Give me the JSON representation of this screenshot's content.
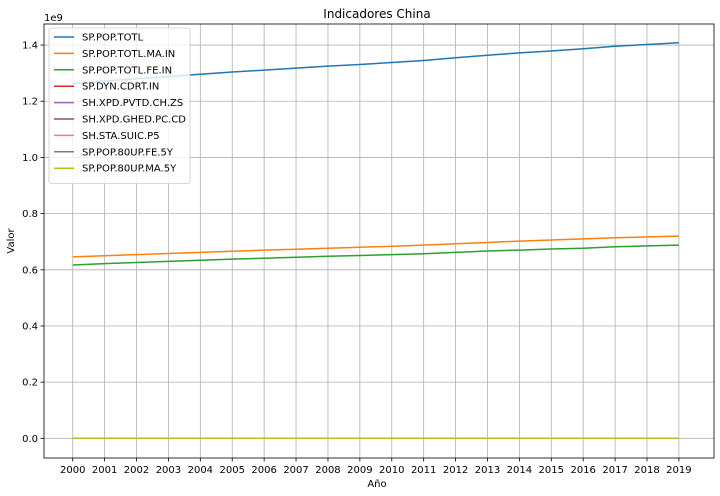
{
  "chart_data": {
    "type": "line",
    "title": "Indicadores China",
    "xlabel": "Año",
    "ylabel": "Valor",
    "y_offset_label": "1e9",
    "x": [
      2000,
      2001,
      2002,
      2003,
      2004,
      2005,
      2006,
      2007,
      2008,
      2009,
      2010,
      2011,
      2012,
      2013,
      2014,
      2015,
      2016,
      2017,
      2018,
      2019
    ],
    "xlim": [
      1999.1,
      2020.1
    ],
    "ylim": [
      -0.07,
      1.475
    ],
    "y_ticks": [
      0.0,
      0.2,
      0.4,
      0.6,
      0.8,
      1.0,
      1.2,
      1.4
    ],
    "y_tick_labels": [
      "0.0",
      "0.2",
      "0.4",
      "0.6",
      "0.8",
      "1.0",
      "1.2",
      "1.4"
    ],
    "grid": true,
    "legend_position": "top-left",
    "series": [
      {
        "name": "SP.POP.TOTL",
        "color": "#1f77b4",
        "values": [
          1.263,
          1.272,
          1.28,
          1.288,
          1.296,
          1.304,
          1.311,
          1.318,
          1.325,
          1.331,
          1.338,
          1.345,
          1.355,
          1.364,
          1.372,
          1.379,
          1.387,
          1.396,
          1.402,
          1.408
        ]
      },
      {
        "name": "SP.POP.TOTL.MA.IN",
        "color": "#ff7f0e",
        "values": [
          0.646,
          0.65,
          0.654,
          0.658,
          0.662,
          0.666,
          0.67,
          0.673,
          0.677,
          0.68,
          0.684,
          0.688,
          0.693,
          0.697,
          0.702,
          0.706,
          0.71,
          0.714,
          0.717,
          0.72
        ]
      },
      {
        "name": "SP.POP.TOTL.FE.IN",
        "color": "#2ca02c",
        "values": [
          0.617,
          0.622,
          0.626,
          0.63,
          0.634,
          0.638,
          0.641,
          0.645,
          0.648,
          0.651,
          0.654,
          0.657,
          0.662,
          0.667,
          0.67,
          0.674,
          0.677,
          0.682,
          0.685,
          0.688
        ]
      },
      {
        "name": "SP.DYN.CDRT.IN",
        "color": "#d62728",
        "values": [
          0,
          0,
          0,
          0,
          0,
          0,
          0,
          0,
          0,
          0,
          0,
          0,
          0,
          0,
          0,
          0,
          0,
          0,
          0,
          0
        ]
      },
      {
        "name": "SH.XPD.PVTD.CH.ZS",
        "color": "#9467bd",
        "values": [
          0,
          0,
          0,
          0,
          0,
          0,
          0,
          0,
          0,
          0,
          0,
          0,
          0,
          0,
          0,
          0,
          0,
          0,
          0,
          0
        ]
      },
      {
        "name": "SH.XPD.GHED.PC.CD",
        "color": "#8c564b",
        "values": [
          0,
          0,
          0,
          0,
          0,
          0,
          0,
          0,
          0,
          0,
          0,
          0,
          0,
          0,
          0,
          0,
          0,
          0,
          0,
          0
        ]
      },
      {
        "name": "SH.STA.SUIC.P5",
        "color": "#e377c2",
        "values": [
          0,
          0,
          0,
          0,
          0,
          0,
          0,
          0,
          0,
          0,
          0,
          0,
          0,
          0,
          0,
          0,
          0,
          0,
          0,
          0
        ]
      },
      {
        "name": "SP.POP.80UP.FE.5Y",
        "color": "#7f7f7f",
        "values": [
          0,
          0,
          0,
          0,
          0,
          0,
          0,
          0,
          0,
          0,
          0,
          0,
          0,
          0,
          0,
          0,
          0,
          0,
          0,
          0
        ]
      },
      {
        "name": "SP.POP.80UP.MA.5Y",
        "color": "#bcbd22",
        "values": [
          0,
          0,
          0,
          0,
          0,
          0,
          0,
          0,
          0,
          0,
          0,
          0,
          0,
          0,
          0,
          0,
          0,
          0,
          0,
          0
        ]
      }
    ]
  }
}
